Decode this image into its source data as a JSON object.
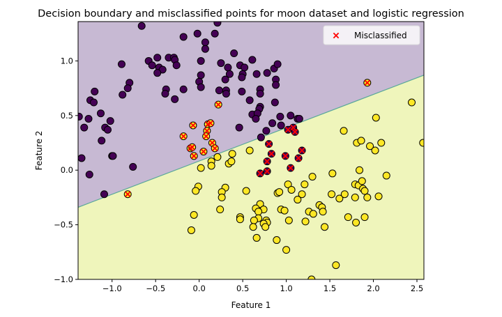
{
  "chart_data": {
    "type": "scatter",
    "title": "Decision boundary and misclassified points for moon dataset and logistic regression",
    "xlabel": "Feature 1",
    "ylabel": "Feature 2",
    "xlim": [
      -1.39,
      2.58
    ],
    "ylim": [
      -1.0,
      1.36
    ],
    "xticks": [
      -1.0,
      -0.5,
      0.0,
      0.5,
      1.0,
      1.5,
      2.0,
      2.5
    ],
    "xtick_labels": [
      "−1.0",
      "−0.5",
      "0.0",
      "0.5",
      "1.0",
      "1.5",
      "2.0",
      "2.5"
    ],
    "yticks": [
      -1.0,
      -0.5,
      0.0,
      0.5,
      1.0
    ],
    "ytick_labels": [
      "−1.0",
      "−0.5",
      "0.0",
      "0.5",
      "1.0"
    ],
    "grid": false,
    "legend": {
      "placement": "top-right",
      "entries": [
        "Misclassified"
      ]
    },
    "colors": {
      "class0": "#440154",
      "class1": "#fde725",
      "region0": "#c7b9d3",
      "region1": "#eff5bb",
      "boundary": "#5aa89a",
      "misclassified": "#ff0000"
    },
    "decision_boundary": {
      "x": [
        -1.39,
        2.58
      ],
      "y": [
        -0.34,
        0.87
      ]
    },
    "series": [
      {
        "label": 0,
        "points": [
          [
            -0.66,
            1.32
          ],
          [
            0.21,
            1.35
          ],
          [
            -0.18,
            1.22
          ],
          [
            -0.02,
            1.25
          ],
          [
            0.18,
            1.25
          ],
          [
            0.07,
            1.17
          ],
          [
            0.07,
            1.11
          ],
          [
            0.4,
            1.07
          ],
          [
            -0.89,
            0.97
          ],
          [
            -0.58,
            1.0
          ],
          [
            -0.54,
            0.96
          ],
          [
            -0.48,
            1.03
          ],
          [
            -0.46,
            0.94
          ],
          [
            -0.42,
            0.92
          ],
          [
            -0.48,
            0.89
          ],
          [
            -0.35,
            1.03
          ],
          [
            -0.29,
            1.03
          ],
          [
            -0.28,
            1.01
          ],
          [
            -0.26,
            0.96
          ],
          [
            0.02,
            1.0
          ],
          [
            0.25,
            0.98
          ],
          [
            0.33,
            0.94
          ],
          [
            0.35,
            0.88
          ],
          [
            0.47,
            0.96
          ],
          [
            0.52,
            0.94
          ],
          [
            0.61,
            1.01
          ],
          [
            0.5,
            0.88
          ],
          [
            0.49,
            0.85
          ],
          [
            0.66,
            0.88
          ],
          [
            0.78,
            0.89
          ],
          [
            0.86,
            0.93
          ],
          [
            0.9,
            0.97
          ],
          [
            0.88,
            0.83
          ],
          [
            0.88,
            0.78
          ],
          [
            0.02,
            0.87
          ],
          [
            0.0,
            0.81
          ],
          [
            0.02,
            0.76
          ],
          [
            0.3,
            0.83
          ],
          [
            0.7,
            0.74
          ],
          [
            0.7,
            0.7
          ],
          [
            0.49,
            0.72
          ],
          [
            0.31,
            0.73
          ],
          [
            0.31,
            0.7
          ],
          [
            0.23,
            0.73
          ],
          [
            -0.18,
            0.74
          ],
          [
            -0.38,
            0.74
          ],
          [
            -0.39,
            0.7
          ],
          [
            -0.28,
            0.65
          ],
          [
            -0.8,
            0.8
          ],
          [
            -0.82,
            0.75
          ],
          [
            -0.88,
            0.69
          ],
          [
            -1.2,
            0.72
          ],
          [
            -1.25,
            0.64
          ],
          [
            -1.21,
            0.62
          ],
          [
            -1.13,
            0.52
          ],
          [
            -1.27,
            0.47
          ],
          [
            -1.38,
            0.49
          ],
          [
            -1.32,
            0.39
          ],
          [
            -1.08,
            0.39
          ],
          [
            -1.05,
            0.37
          ],
          [
            -1.02,
            0.45
          ],
          [
            -1.12,
            0.27
          ],
          [
            -1.35,
            0.11
          ],
          [
            -1.0,
            0.13
          ],
          [
            -0.99,
            0.13
          ],
          [
            -1.26,
            -0.04
          ],
          [
            -1.09,
            -0.22
          ],
          [
            -0.76,
            0.03
          ],
          [
            0.58,
            0.64
          ],
          [
            0.7,
            0.58
          ],
          [
            0.69,
            0.56
          ],
          [
            0.87,
            0.62
          ],
          [
            0.61,
            0.51
          ],
          [
            0.67,
            0.52
          ],
          [
            0.65,
            0.47
          ],
          [
            0.46,
            0.39
          ],
          [
            0.84,
            0.43
          ],
          [
            0.93,
            0.49
          ],
          [
            0.94,
            0.41
          ],
          [
            1.05,
            0.5
          ],
          [
            1.13,
            0.47
          ],
          [
            1.15,
            0.47
          ],
          [
            0.77,
            0.36
          ],
          [
            0.71,
            0.3
          ]
        ],
        "misclassified": [
          [
            1.02,
            0.37
          ],
          [
            1.08,
            0.39
          ],
          [
            1.1,
            0.35
          ],
          [
            0.8,
            0.24
          ],
          [
            0.83,
            0.15
          ],
          [
            0.78,
            0.08
          ],
          [
            0.7,
            -0.03
          ],
          [
            0.78,
            -0.01
          ],
          [
            0.99,
            0.13
          ],
          [
            1.18,
            0.18
          ],
          [
            1.14,
            0.11
          ],
          [
            1.05,
            0.02
          ]
        ]
      },
      {
        "label": 1,
        "points": [
          [
            2.44,
            0.62
          ],
          [
            2.03,
            0.48
          ],
          [
            1.66,
            0.36
          ],
          [
            1.81,
            0.25
          ],
          [
            1.86,
            0.27
          ],
          [
            1.96,
            0.22
          ],
          [
            2.02,
            0.18
          ],
          [
            2.09,
            0.25
          ],
          [
            2.57,
            0.25
          ],
          [
            0.58,
            0.18
          ],
          [
            0.38,
            0.15
          ],
          [
            0.21,
            0.12
          ],
          [
            0.14,
            0.08
          ],
          [
            0.14,
            0.04
          ],
          [
            0.02,
            0.02
          ],
          [
            0.34,
            0.06
          ],
          [
            0.37,
            0.08
          ],
          [
            1.3,
            -0.06
          ],
          [
            1.53,
            -0.03
          ],
          [
            1.84,
            0.0
          ],
          [
            2.15,
            -0.05
          ],
          [
            1.02,
            -0.13
          ],
          [
            1.06,
            -0.18
          ],
          [
            1.21,
            -0.13
          ],
          [
            1.18,
            -0.22
          ],
          [
            1.13,
            -0.27
          ],
          [
            0.9,
            -0.21
          ],
          [
            0.92,
            -0.2
          ],
          [
            0.54,
            -0.19
          ],
          [
            0.3,
            -0.16
          ],
          [
            0.26,
            -0.2
          ],
          [
            0.26,
            -0.25
          ],
          [
            -0.01,
            -0.15
          ],
          [
            -0.04,
            -0.19
          ],
          [
            0.24,
            -0.36
          ],
          [
            -0.06,
            -0.41
          ],
          [
            -0.09,
            -0.55
          ],
          [
            1.52,
            -0.22
          ],
          [
            1.61,
            -0.26
          ],
          [
            1.67,
            -0.22
          ],
          [
            1.79,
            -0.13
          ],
          [
            1.83,
            -0.14
          ],
          [
            1.87,
            -0.1
          ],
          [
            1.88,
            -0.17
          ],
          [
            1.9,
            -0.19
          ],
          [
            1.79,
            -0.25
          ],
          [
            1.93,
            -0.25
          ],
          [
            2.06,
            -0.24
          ],
          [
            1.38,
            -0.32
          ],
          [
            1.41,
            -0.34
          ],
          [
            1.42,
            -0.38
          ],
          [
            1.26,
            -0.38
          ],
          [
            1.31,
            -0.4
          ],
          [
            1.71,
            -0.43
          ],
          [
            1.8,
            -0.48
          ],
          [
            1.9,
            -0.43
          ],
          [
            1.44,
            -0.52
          ],
          [
            1.22,
            -0.47
          ],
          [
            1.03,
            -0.46
          ],
          [
            0.94,
            -0.36
          ],
          [
            0.98,
            -0.37
          ],
          [
            0.7,
            -0.31
          ],
          [
            0.65,
            -0.35
          ],
          [
            0.74,
            -0.36
          ],
          [
            0.68,
            -0.38
          ],
          [
            0.68,
            -0.44
          ],
          [
            0.63,
            -0.46
          ],
          [
            0.77,
            -0.46
          ],
          [
            0.78,
            -0.48
          ],
          [
            0.74,
            -0.49
          ],
          [
            0.76,
            -0.52
          ],
          [
            0.62,
            -0.52
          ],
          [
            0.47,
            -0.43
          ],
          [
            0.47,
            -0.45
          ],
          [
            0.66,
            -0.62
          ],
          [
            0.89,
            -0.64
          ],
          [
            1.0,
            -0.73
          ],
          [
            1.57,
            -0.87
          ],
          [
            1.29,
            -1.0
          ]
        ],
        "misclassified": [
          [
            1.93,
            0.8
          ],
          [
            0.22,
            0.6
          ],
          [
            -0.07,
            0.41
          ],
          [
            -0.18,
            0.31
          ],
          [
            0.1,
            0.42
          ],
          [
            0.13,
            0.43
          ],
          [
            0.09,
            0.36
          ],
          [
            0.08,
            0.31
          ],
          [
            0.15,
            0.25
          ],
          [
            0.18,
            0.2
          ],
          [
            -0.1,
            0.2
          ],
          [
            -0.08,
            0.21
          ],
          [
            -0.06,
            0.13
          ],
          [
            0.05,
            0.17
          ],
          [
            -0.82,
            -0.22
          ]
        ]
      }
    ]
  }
}
